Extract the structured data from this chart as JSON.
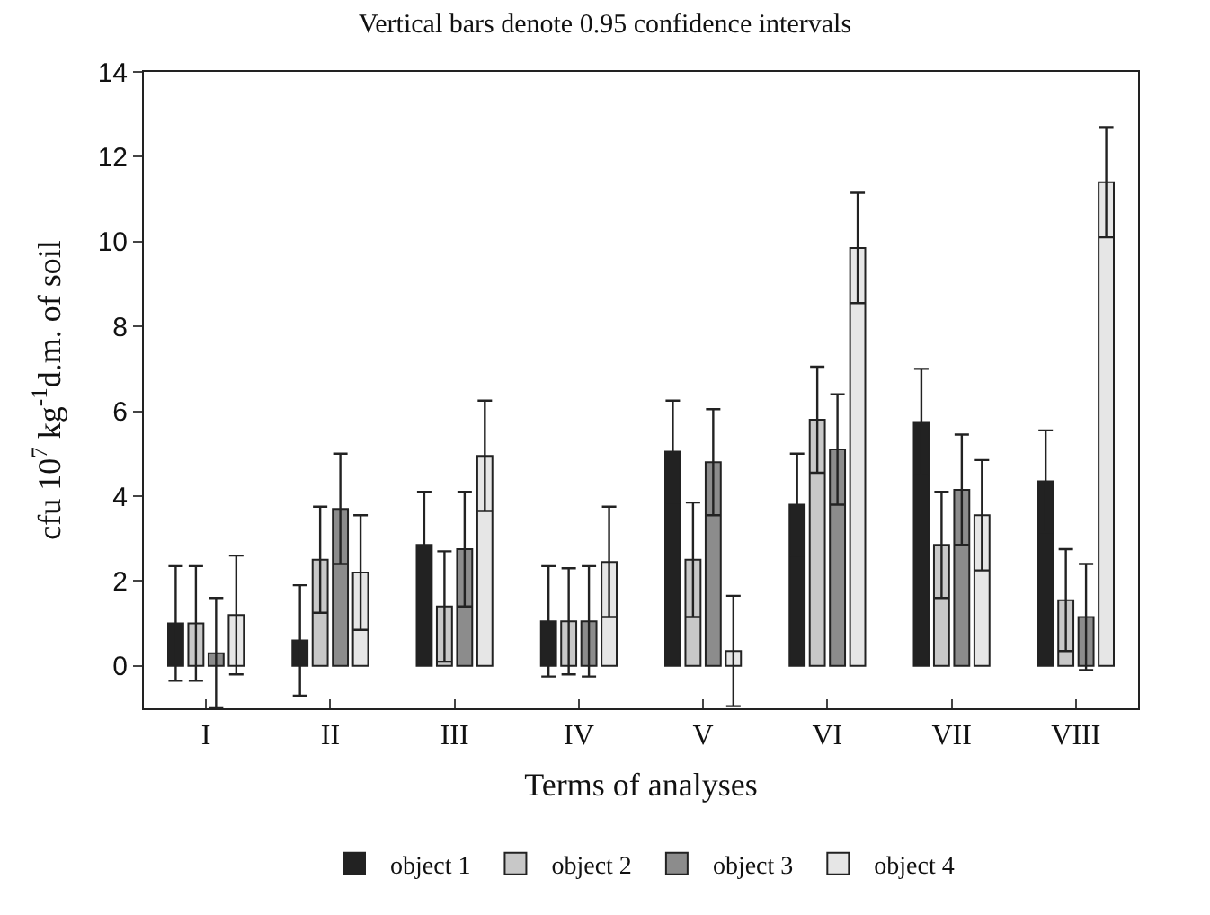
{
  "chart_data": {
    "type": "bar",
    "title": "Vertical bars denote 0.95 confidence intervals",
    "xlabel": "Terms of analyses",
    "ylabel": "cfu 10$^{7}$ kg$^{-1}$d.m. of soil",
    "categories": [
      "I",
      "II",
      "III",
      "IV",
      "V",
      "VI",
      "VII",
      "VIII"
    ],
    "series": [
      {
        "name": "object 1",
        "color": "#222222",
        "values": [
          1.0,
          0.6,
          2.85,
          1.05,
          5.05,
          3.8,
          5.75,
          4.35
        ],
        "errors": [
          1.35,
          1.3,
          1.25,
          1.3,
          1.2,
          1.2,
          1.25,
          1.2
        ]
      },
      {
        "name": "object 2",
        "color": "#c8c8c8",
        "values": [
          1.0,
          2.5,
          1.4,
          1.05,
          2.5,
          5.8,
          2.85,
          1.55
        ],
        "errors": [
          1.35,
          1.25,
          1.3,
          1.25,
          1.35,
          1.25,
          1.25,
          1.2
        ]
      },
      {
        "name": "object 3",
        "color": "#8c8c8c",
        "values": [
          0.3,
          3.7,
          2.75,
          1.05,
          4.8,
          5.1,
          4.15,
          1.15
        ],
        "errors": [
          1.3,
          1.3,
          1.35,
          1.3,
          1.25,
          1.3,
          1.3,
          1.25
        ]
      },
      {
        "name": "object 4",
        "color": "#e6e6e6",
        "values": [
          1.2,
          2.2,
          4.95,
          2.45,
          0.35,
          9.85,
          3.55,
          11.4
        ],
        "errors": [
          1.4,
          1.35,
          1.3,
          1.3,
          1.3,
          1.3,
          1.3,
          1.3
        ]
      }
    ],
    "ylim": [
      -1,
      14
    ],
    "yticks": [
      0,
      2,
      4,
      6,
      8,
      10,
      12,
      14
    ],
    "legend": "bottom"
  }
}
